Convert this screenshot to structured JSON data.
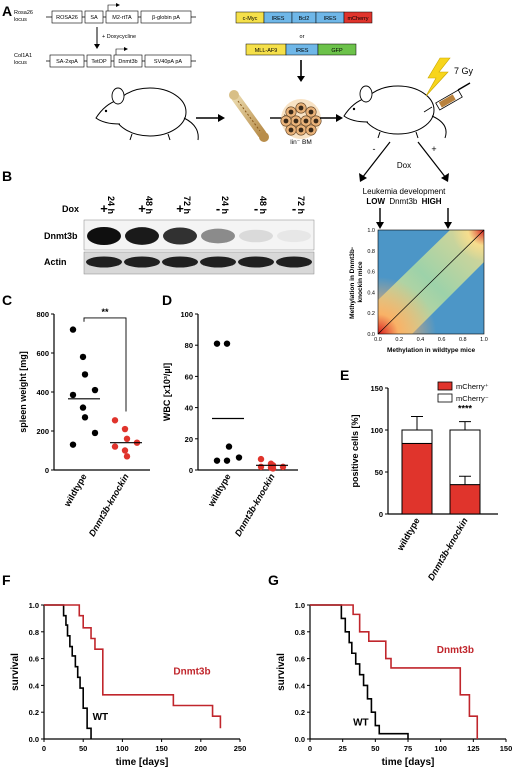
{
  "panel_labels": {
    "A": "A",
    "B": "B",
    "C": "C",
    "D": "D",
    "E": "E",
    "F": "F",
    "G": "G"
  },
  "panelA": {
    "rosa26_locus": "Rosa26\nlocus",
    "rosa_boxes": [
      "ROSA26",
      "SA",
      "M2-rtTA",
      "β-globin pA"
    ],
    "doxycycline": "+ Doxycycline",
    "col1a1_locus": "Col1A1\nlocus",
    "col_boxes": [
      "SA-2xpA",
      "TetOP",
      "Dnmt3b",
      "SV40pA pA"
    ],
    "construct1": [
      {
        "label": "c-Myc",
        "color": "#f5e04a"
      },
      {
        "label": "IRES",
        "color": "#6fb7e8"
      },
      {
        "label": "Bcl2",
        "color": "#6fb7e8"
      },
      {
        "label": "IRES",
        "color": "#6fb7e8"
      },
      {
        "label": "mCherry",
        "color": "#e0342c"
      }
    ],
    "or_label": "or",
    "construct2": [
      {
        "label": "MLL-AF9",
        "color": "#f5e04a"
      },
      {
        "label": "IRES",
        "color": "#6fb7e8"
      },
      {
        "label": "GFP",
        "color": "#6cc24a"
      }
    ],
    "lin_bm": "lin⁻ BM",
    "gy": "7 Gy",
    "dox": "Dox",
    "minus": "-",
    "plus": "+",
    "leukemia_title": "Leukemia development",
    "low": "LOW",
    "dnmt3b_word": "Dnmt3b",
    "high": "HIGH",
    "heatmap": {
      "ylabel": "Methylation in Dnmt3b-\nknockin mice",
      "xlabel": "Methylation in wildtype mice",
      "ticks": [
        "0.0",
        "0.2",
        "0.4",
        "0.6",
        "0.8",
        "1.0"
      ]
    }
  },
  "panelB": {
    "times": [
      "24 h",
      "48 h",
      "72 h",
      "24 h",
      "48 h",
      "72 h"
    ],
    "dox_label": "Dox",
    "dox_signs": [
      "+",
      "+",
      "+",
      "-",
      "-",
      "-"
    ],
    "row_labels": [
      "Dnmt3b",
      "Actin"
    ],
    "dnmt3b_intensity": [
      1.0,
      0.95,
      0.85,
      0.45,
      0.1,
      0.04
    ]
  },
  "chart_data": [
    {
      "id": "C",
      "type": "scatter",
      "ylabel": "spleen weight [mg]",
      "ylim": [
        0,
        800
      ],
      "yticks": [
        "0",
        "200",
        "400",
        "600",
        "800"
      ],
      "categories": [
        "wildtype",
        "Dnmt3b-knockin"
      ],
      "series": [
        {
          "values": [
            720,
            580,
            490,
            410,
            385,
            320,
            270,
            190,
            130
          ],
          "mean": 365,
          "color": "#000000"
        },
        {
          "values": [
            255,
            210,
            160,
            140,
            120,
            100,
            70
          ],
          "mean": 140,
          "color": "#e0342c"
        }
      ],
      "annotation": "**"
    },
    {
      "id": "D",
      "type": "scatter",
      "ylabel": "WBC [x10³/µl]",
      "ylim": [
        0,
        100
      ],
      "yticks": [
        "0",
        "20",
        "40",
        "60",
        "80",
        "100"
      ],
      "categories": [
        "wildtype",
        "Dnmt3b-knockin"
      ],
      "series": [
        {
          "values": [
            81,
            81,
            15,
            8,
            6,
            6
          ],
          "mean": 33,
          "color": "#000000"
        },
        {
          "values": [
            7,
            4,
            3,
            2,
            2,
            1.5,
            1
          ],
          "mean": 3,
          "color": "#e0342c"
        }
      ]
    },
    {
      "id": "E",
      "type": "bar",
      "ylabel": "positive cells [%]",
      "ylim": [
        0,
        150
      ],
      "yticks": [
        "0",
        "50",
        "100",
        "150"
      ],
      "categories": [
        "wildtype",
        "Dnmt3b-knockin"
      ],
      "series": [
        {
          "name": "mCherry⁺",
          "values": [
            84,
            35
          ],
          "error": [
            0,
            10
          ],
          "color": "#e0342c"
        },
        {
          "name": "mCherry⁻",
          "values": [
            16,
            65
          ],
          "error": [
            16,
            10
          ],
          "color": "#ffffff"
        }
      ],
      "annotation": "****"
    },
    {
      "id": "F",
      "type": "line",
      "ylabel": "survival",
      "xlabel": "time [days]",
      "xlim": [
        0,
        250
      ],
      "ylim": [
        0,
        1.0
      ],
      "xticks": [
        "0",
        "50",
        "100",
        "150",
        "200",
        "250"
      ],
      "yticks": [
        "0.0",
        "0.2",
        "0.4",
        "0.6",
        "0.8",
        "1.0"
      ],
      "series": [
        {
          "name": "WT",
          "color": "#000000",
          "x": [
            0,
            20,
            25,
            28,
            30,
            33,
            36,
            40,
            43,
            46,
            50,
            55,
            60
          ],
          "y": [
            1.0,
            1.0,
            0.92,
            0.85,
            0.77,
            0.69,
            0.62,
            0.54,
            0.46,
            0.38,
            0.23,
            0.08,
            0.0
          ]
        },
        {
          "name": "Dnmt3b",
          "color": "#c0262c",
          "x": [
            0,
            40,
            45,
            50,
            60,
            65,
            75,
            155,
            165,
            185,
            215,
            225
          ],
          "y": [
            1.0,
            1.0,
            0.92,
            0.83,
            0.75,
            0.67,
            0.33,
            0.33,
            0.25,
            0.25,
            0.17,
            0.08
          ]
        }
      ]
    },
    {
      "id": "G",
      "type": "line",
      "ylabel": "survival",
      "xlabel": "time [days]",
      "xlim": [
        0,
        150
      ],
      "ylim": [
        0,
        1.0
      ],
      "xticks": [
        "0",
        "25",
        "50",
        "75",
        "100",
        "125",
        "150"
      ],
      "yticks": [
        "0.0",
        "0.2",
        "0.4",
        "0.6",
        "0.8",
        "1.0"
      ],
      "series": [
        {
          "name": "WT",
          "color": "#000000",
          "x": [
            0,
            20,
            24,
            27,
            30,
            32,
            35,
            38,
            41,
            44,
            47,
            50,
            53,
            75
          ],
          "y": [
            1.0,
            1.0,
            0.9,
            0.8,
            0.72,
            0.64,
            0.56,
            0.48,
            0.4,
            0.3,
            0.2,
            0.1,
            0.04,
            0.0
          ]
        },
        {
          "name": "Dnmt3b",
          "color": "#c0262c",
          "x": [
            0,
            25,
            33,
            38,
            45,
            58,
            62,
            108,
            115,
            122,
            128
          ],
          "y": [
            1.0,
            1.0,
            0.93,
            0.8,
            0.73,
            0.6,
            0.53,
            0.53,
            0.33,
            0.17,
            0.0
          ]
        }
      ]
    }
  ]
}
